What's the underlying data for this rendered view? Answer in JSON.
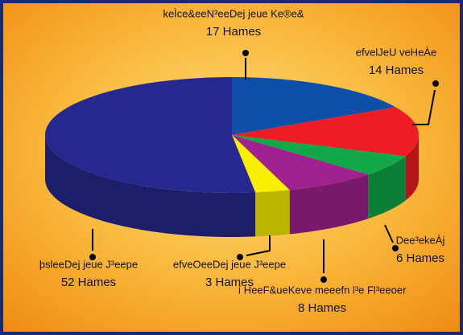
{
  "chart_data": {
    "type": "pie",
    "categories": [
      "keÌce&eeN³eeDej jeue Ke®e&",
      "efvelJeU veHeÀe",
      "Dee³ekeÀj",
      "í HeeF&ueKeve meeefn l³e Fl³eeoer",
      "efveOeeDej jeue J³eepe",
      "þsleeDej jeue J³eepe"
    ],
    "values": [
      17,
      14,
      6,
      8,
      3,
      52
    ],
    "value_labels": [
      "17 Hames",
      "14 Hames",
      "6 Hames",
      "8 Hames",
      "3 Hames",
      "52 Hames"
    ],
    "colors": [
      "#0b4fa8",
      "#ee1c24",
      "#11a84a",
      "#a0218f",
      "#f8f000",
      "#25288f"
    ]
  }
}
